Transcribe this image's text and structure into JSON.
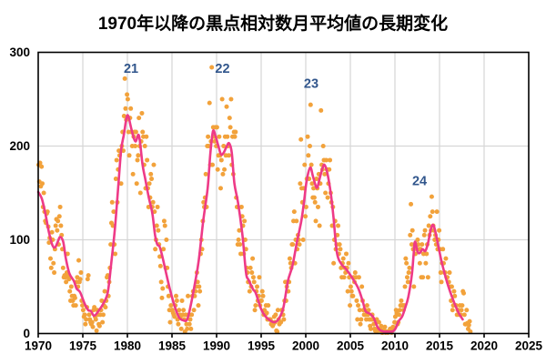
{
  "chart_data": {
    "type": "scatter",
    "title": "1970年以降の黒点相対数月平均値の長期変化",
    "xlabel": "",
    "ylabel": "",
    "x_axis": {
      "min": 1970,
      "max": 2025,
      "ticks": [
        1970,
        1975,
        1980,
        1985,
        1990,
        1995,
        2000,
        2005,
        2010,
        2015,
        2020,
        2025
      ]
    },
    "y_axis": {
      "min": 0,
      "max": 300,
      "ticks": [
        0,
        100,
        200,
        300
      ]
    },
    "grid": true,
    "legend": "none",
    "colors": {
      "points": "#F2A23B",
      "line": "#EE3A87",
      "cycle_labels": "#31568C",
      "grid": "#D6D6D6",
      "axis": "#000000",
      "background": "#FFFFFF"
    },
    "cycle_labels": [
      {
        "label": "21",
        "year": 1980.41,
        "value": 282
      },
      {
        "label": "22",
        "year": 1990.66,
        "value": 282
      },
      {
        "label": "23",
        "year": 2000.61,
        "value": 266
      },
      {
        "label": "24",
        "year": 2012.76,
        "value": 162
      }
    ],
    "scatter": {
      "description": "monthly mean sunspot relative number",
      "start_year": 1970,
      "monthly_values_by_year": {
        "1970": [
          180,
          162,
          182,
          157,
          178,
          160,
          135,
          150,
          130,
          120,
          118,
          128
        ],
        "1971": [
          130,
          114,
          97,
          102,
          80,
          70,
          108,
          100,
          75,
          65,
          90,
          115
        ],
        "1972": [
          122,
          110,
          120,
          95,
          125,
          135,
          115,
          105,
          90,
          70,
          60,
          62
        ],
        "1973": [
          60,
          55,
          65,
          85,
          62,
          58,
          45,
          35,
          50,
          40,
          35,
          30
        ],
        "1974": [
          40,
          38,
          30,
          55,
          60,
          50,
          78,
          55,
          58,
          65,
          35,
          30
        ],
        "1975": [
          25,
          18,
          20,
          10,
          15,
          28,
          58,
          62,
          20,
          15,
          12,
          10
        ],
        "1976": [
          12,
          7,
          25,
          28,
          18,
          15,
          3,
          25,
          20,
          10,
          8,
          20
        ],
        "1977": [
          25,
          35,
          12,
          20,
          30,
          45,
          28,
          35,
          60,
          62,
          40,
          55
        ],
        "1978": [
          70,
          95,
          118,
          140,
          115,
          130,
          95,
          85,
          165,
          185,
          140,
          175
        ],
        "1979": [
          195,
          190,
          195,
          160,
          200,
          215,
          195,
          232,
          272,
          240,
          228,
          255
        ],
        "1980": [
          250,
          215,
          190,
          230,
          240,
          215,
          200,
          170,
          210,
          215,
          200,
          215
        ],
        "1981": [
          160,
          185,
          190,
          230,
          200,
          150,
          205,
          235,
          215,
          210,
          180,
          200
        ],
        "1982": [
          155,
          210,
          185,
          155,
          135,
          160,
          145,
          170,
          165,
          135,
          140,
          180
        ],
        "1983": [
          130,
          90,
          100,
          115,
          135,
          110,
          95,
          82,
          72,
          55,
          38,
          48
        ],
        "1984": [
          90,
          120,
          115,
          70,
          100,
          70,
          50,
          40,
          25,
          12,
          30,
          25
        ],
        "1985": [
          25,
          22,
          20,
          18,
          30,
          40,
          35,
          15,
          10,
          25,
          20,
          18
        ],
        "1986": [
          5,
          35,
          20,
          25,
          15,
          2,
          20,
          10,
          5,
          40,
          20,
          10
        ],
        "1987": [
          15,
          5,
          20,
          40,
          45,
          25,
          40,
          45,
          50,
          65,
          55,
          30
        ],
        "1988": [
          50,
          45,
          85,
          100,
          90,
          120,
          140,
          135,
          145,
          170,
          135,
          200
        ],
        "1989": [
          210,
          200,
          246,
          180,
          205,
          284,
          180,
          220,
          210,
          205,
          220,
          200
        ],
        "1990": [
          220,
          175,
          190,
          210,
          190,
          155,
          185,
          250,
          170,
          200,
          175,
          210
        ],
        "1991": [
          190,
          242,
          210,
          200,
          190,
          230,
          220,
          250,
          180,
          210,
          170,
          215
        ],
        "1992": [
          210,
          215,
          145,
          135,
          95,
          100,
          110,
          95,
          85,
          135,
          125,
          115
        ],
        "1993": [
          85,
          120,
          100,
          90,
          70,
          65,
          55,
          55,
          45,
          70,
          50,
          65
        ],
        "1994": [
          80,
          60,
          55,
          25,
          30,
          45,
          50,
          35,
          40,
          60,
          30,
          35
        ],
        "1995": [
          35,
          45,
          40,
          20,
          25,
          20,
          30,
          22,
          15,
          30,
          15,
          15
        ],
        "1996": [
          15,
          10,
          12,
          8,
          10,
          18,
          12,
          20,
          3,
          2,
          25,
          15
        ],
        "1997": [
          10,
          12,
          12,
          25,
          25,
          20,
          15,
          35,
          55,
          35,
          50,
          55
        ],
        "1998": [
          45,
          55,
          80,
          75,
          70,
          95,
          95,
          120,
          130,
          75,
          100,
          120
        ],
        "1999": [
          90,
          105,
          100,
          95,
          160,
          207,
          155,
          140,
          100,
          155,
          180,
          125
        ],
        "2000": [
          135,
          165,
          210,
          190,
          165,
          200,
          244,
          180,
          160,
          145,
          155,
          145
        ],
        "2001": [
          140,
          120,
          165,
          155,
          135,
          170,
          115,
          160,
          238,
          180,
          175,
          200
        ],
        "2002": [
          185,
          170,
          150,
          185,
          175,
          145,
          160,
          175,
          185,
          150,
          140,
          115
        ],
        "2003": [
          135,
          75,
          100,
          120,
          90,
          95,
          105,
          115,
          85,
          95,
          90,
          70
        ],
        "2004": [
          60,
          75,
          80,
          60,
          70,
          65,
          85,
          70,
          45,
          75,
          60,
          30
        ],
        "2005": [
          50,
          45,
          40,
          40,
          60,
          55,
          65,
          60,
          35,
          15,
          30,
          60
        ],
        "2006": [
          25,
          10,
          15,
          50,
          35,
          25,
          20,
          20,
          25,
          15,
          30,
          20
        ],
        "2007": [
          25,
          15,
          8,
          5,
          15,
          20,
          15,
          10,
          5,
          3,
          2,
          15
        ],
        "2008": [
          5,
          3,
          12,
          5,
          5,
          8,
          1,
          1,
          2,
          4,
          7,
          1
        ],
        "2009": [
          2,
          2,
          1,
          2,
          3,
          5,
          5,
          1,
          6,
          7,
          6,
          12
        ],
        "2010": [
          18,
          25,
          22,
          10,
          12,
          20,
          25,
          30,
          35,
          30,
          30,
          25
        ],
        "2011": [
          30,
          50,
          80,
          75,
          60,
          55,
          65,
          70,
          105,
          138,
          95,
          110
        ],
        "2012": [
          90,
          50,
          95,
          85,
          95,
          90,
          100,
          95,
          90,
          75,
          90,
          60
        ],
        "2013": [
          95,
          60,
          85,
          105,
          110,
          75,
          85,
          95,
          60,
          115,
          105,
          125
        ],
        "2014": [
          110,
          146,
          130,
          115,
          110,
          100,
          105,
          95,
          130,
          90,
          100,
          110
        ],
        "2015": [
          90,
          65,
          55,
          75,
          90,
          75,
          65,
          65,
          80,
          60,
          60,
          55
        ],
        "2016": [
          55,
          65,
          50,
          35,
          50,
          25,
          30,
          45,
          40,
          30,
          30,
          20
        ],
        "2017": [
          25,
          25,
          20,
          30,
          20,
          25,
          30,
          45,
          43,
          20,
          10,
          10
        ],
        "2018": [
          25,
          11,
          5,
          9,
          13,
          2
        ]
      }
    },
    "smoothed_line": {
      "description": "13-month smoothed sunspot number",
      "points": [
        [
          1970.0,
          151
        ],
        [
          1970.4,
          144
        ],
        [
          1970.8,
          128
        ],
        [
          1971.2,
          108
        ],
        [
          1971.6,
          94
        ],
        [
          1971.9,
          92
        ],
        [
          1972.2,
          98
        ],
        [
          1972.45,
          103
        ],
        [
          1972.8,
          98
        ],
        [
          1973.1,
          80
        ],
        [
          1973.5,
          64
        ],
        [
          1974.0,
          56
        ],
        [
          1974.3,
          48
        ],
        [
          1974.7,
          44
        ],
        [
          1975.2,
          32
        ],
        [
          1975.6,
          25
        ],
        [
          1975.9,
          24
        ],
        [
          1976.3,
          19
        ],
        [
          1976.9,
          26
        ],
        [
          1977.3,
          32
        ],
        [
          1977.8,
          44
        ],
        [
          1978.2,
          76
        ],
        [
          1978.6,
          112
        ],
        [
          1979.0,
          160
        ],
        [
          1979.3,
          196
        ],
        [
          1979.6,
          212
        ],
        [
          1979.9,
          230
        ],
        [
          1980.1,
          232
        ],
        [
          1980.4,
          220
        ],
        [
          1980.7,
          209
        ],
        [
          1980.95,
          205
        ],
        [
          1981.3,
          211
        ],
        [
          1981.7,
          180
        ],
        [
          1982.0,
          165
        ],
        [
          1982.4,
          145
        ],
        [
          1982.8,
          128
        ],
        [
          1983.1,
          105
        ],
        [
          1983.35,
          95
        ],
        [
          1983.6,
          93
        ],
        [
          1983.9,
          83
        ],
        [
          1984.4,
          62
        ],
        [
          1984.8,
          46
        ],
        [
          1985.3,
          29
        ],
        [
          1985.8,
          17
        ],
        [
          1986.3,
          14
        ],
        [
          1986.7,
          15
        ],
        [
          1987.1,
          30
        ],
        [
          1987.6,
          55
        ],
        [
          1988.0,
          78
        ],
        [
          1988.5,
          120
        ],
        [
          1989.0,
          155
        ],
        [
          1989.3,
          192
        ],
        [
          1989.6,
          216
        ],
        [
          1989.9,
          210
        ],
        [
          1990.2,
          200
        ],
        [
          1990.5,
          191
        ],
        [
          1990.8,
          193
        ],
        [
          1991.1,
          199
        ],
        [
          1991.4,
          203
        ],
        [
          1991.7,
          193
        ],
        [
          1992.0,
          160
        ],
        [
          1992.4,
          140
        ],
        [
          1992.9,
          105
        ],
        [
          1993.3,
          65
        ],
        [
          1993.6,
          57
        ],
        [
          1994.1,
          47
        ],
        [
          1994.4,
          43
        ],
        [
          1995.0,
          26
        ],
        [
          1995.5,
          18
        ],
        [
          1996.0,
          14
        ],
        [
          1996.5,
          12
        ],
        [
          1997.0,
          16
        ],
        [
          1997.5,
          28
        ],
        [
          1998.0,
          56
        ],
        [
          1998.5,
          72
        ],
        [
          1999.0,
          97
        ],
        [
          1999.5,
          120
        ],
        [
          1999.8,
          140
        ],
        [
          2000.1,
          163
        ],
        [
          2000.5,
          177
        ],
        [
          2000.8,
          168
        ],
        [
          2001.1,
          158
        ],
        [
          2001.3,
          156
        ],
        [
          2001.6,
          167
        ],
        [
          2001.9,
          177
        ],
        [
          2002.1,
          180
        ],
        [
          2002.4,
          172
        ],
        [
          2002.8,
          150
        ],
        [
          2003.1,
          125
        ],
        [
          2003.5,
          86
        ],
        [
          2004.0,
          74
        ],
        [
          2004.5,
          69
        ],
        [
          2005.3,
          58
        ],
        [
          2005.9,
          48
        ],
        [
          2006.4,
          34
        ],
        [
          2006.7,
          24
        ],
        [
          2007.2,
          21
        ],
        [
          2007.6,
          17
        ],
        [
          2008.1,
          6
        ],
        [
          2008.6,
          2.5
        ],
        [
          2009.3,
          2
        ],
        [
          2009.8,
          2.5
        ],
        [
          2010.1,
          6
        ],
        [
          2010.4,
          13
        ],
        [
          2010.8,
          18
        ],
        [
          2011.1,
          26
        ],
        [
          2011.5,
          39
        ],
        [
          2011.9,
          63
        ],
        [
          2012.1,
          85
        ],
        [
          2012.25,
          98
        ],
        [
          2012.55,
          87
        ],
        [
          2012.8,
          86
        ],
        [
          2013.1,
          90
        ],
        [
          2013.4,
          88
        ],
        [
          2013.7,
          96
        ],
        [
          2014.0,
          110
        ],
        [
          2014.25,
          116
        ],
        [
          2014.5,
          110
        ],
        [
          2015.0,
          87
        ],
        [
          2015.3,
          74
        ],
        [
          2015.9,
          53
        ],
        [
          2016.4,
          39
        ],
        [
          2016.9,
          27
        ],
        [
          2017.2,
          21
        ],
        [
          2017.6,
          15
        ]
      ]
    }
  }
}
